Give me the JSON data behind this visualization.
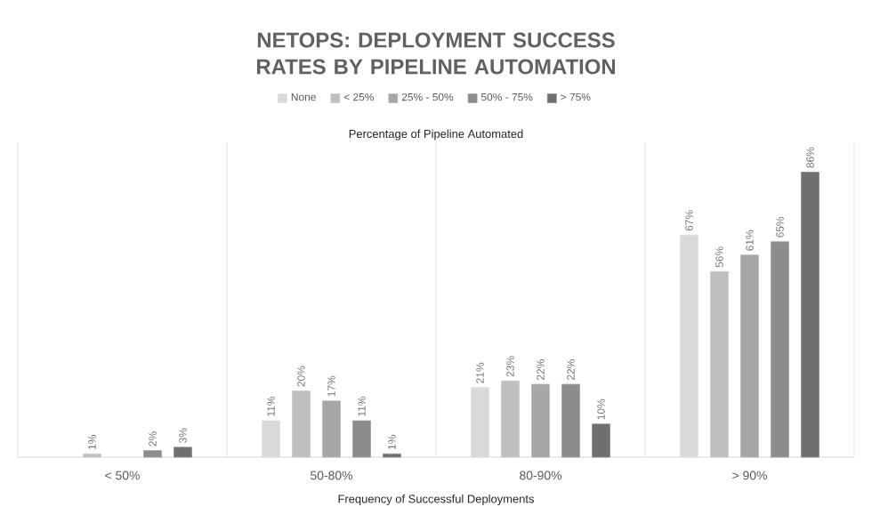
{
  "chart_data": {
    "type": "bar",
    "title": "NETOPS: DEPLOYMENT SUCCESS RATES BY PIPELINE AUTOMATION",
    "xlabel": "Frequency of Successful Deployments",
    "legend_title": "Percentage of Pipeline Automated",
    "legend": "top",
    "grid": "x",
    "ylim": [
      0,
      95
    ],
    "categories": [
      "< 50%",
      "50-80%",
      "80-90%",
      "> 90%"
    ],
    "series": [
      {
        "name": "None",
        "color": "#d9d9d9",
        "values": [
          null,
          11,
          21,
          67
        ],
        "value_labels": [
          null,
          "11%",
          "21%",
          "67%"
        ]
      },
      {
        "name": "< 25%",
        "color": "#bfbfbf",
        "values": [
          1,
          20,
          23,
          56
        ],
        "value_labels": [
          "1%",
          "20%",
          "23%",
          "56%"
        ]
      },
      {
        "name": "25% - 50%",
        "color": "#a6a6a6",
        "values": [
          null,
          17,
          22,
          61
        ],
        "value_labels": [
          null,
          "17%",
          "22%",
          "61%"
        ]
      },
      {
        "name": "50% - 75%",
        "color": "#8c8c8c",
        "values": [
          2,
          11,
          22,
          65
        ],
        "value_labels": [
          "2%",
          "11%",
          "22%",
          "65%"
        ]
      },
      {
        "name": "> 75%",
        "color": "#6f6f6f",
        "values": [
          3,
          1,
          10,
          86
        ],
        "value_labels": [
          "3%",
          "1%",
          "10%",
          "86%"
        ]
      }
    ]
  }
}
